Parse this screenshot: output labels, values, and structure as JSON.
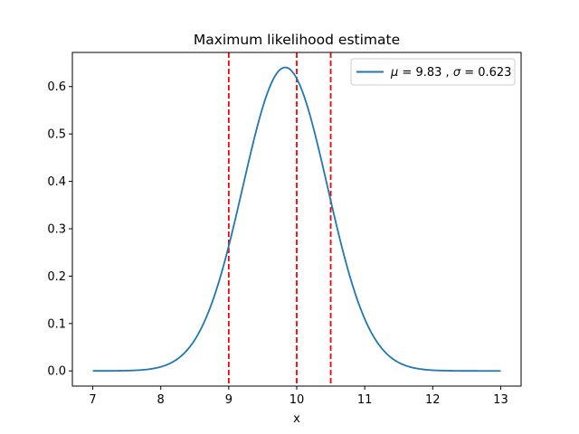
{
  "chart_data": {
    "type": "line",
    "title": "Maximum likelihood estimate",
    "xlabel": "x",
    "ylabel": "",
    "xlim": [
      6.7,
      13.3
    ],
    "ylim": [
      -0.032,
      0.672
    ],
    "xticks": [
      7,
      8,
      9,
      10,
      11,
      12,
      13
    ],
    "yticks": [
      0.0,
      0.1,
      0.2,
      0.3,
      0.4,
      0.5,
      0.6
    ],
    "ytick_labels": [
      "0.0",
      "0.1",
      "0.2",
      "0.3",
      "0.4",
      "0.5",
      "0.6"
    ],
    "grid": false,
    "legend_position": "top-right",
    "series": [
      {
        "name": "μ = 9.83, σ = 0.623",
        "color": "#1f77b4",
        "distribution": "normal",
        "mu": 9.83,
        "sigma": 0.623,
        "x_range": [
          7,
          13
        ]
      }
    ],
    "vlines": [
      {
        "x": 9.0,
        "color": "#ff0000",
        "style": "dashed"
      },
      {
        "x": 10.0,
        "color": "#ff0000",
        "style": "dashed"
      },
      {
        "x": 10.5,
        "color": "#ff0000",
        "style": "dashed"
      }
    ],
    "legend": {
      "mu_symbol": "μ",
      "mu_value": "9.83",
      "sigma_symbol": "σ",
      "sigma_value": "0.623"
    }
  }
}
